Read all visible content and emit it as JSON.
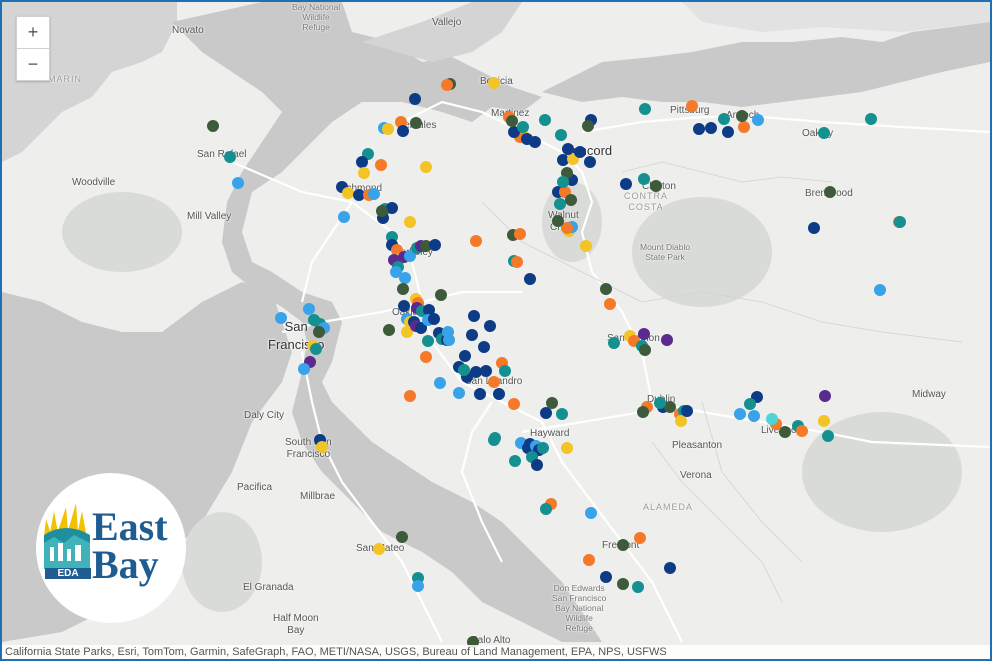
{
  "zoom": {
    "in_label": "+",
    "out_label": "−"
  },
  "attribution": "California State Parks, Esri, TomTom, Garmin, SafeGraph, FAO, METI/NASA, USGS, Bureau of Land Management, EPA, NPS, USFWS",
  "logo": {
    "line1": "East",
    "line2": "Bay",
    "badge": "EDA",
    "sun_color": "#f2c200",
    "brand_color": "#1f5d91"
  },
  "labels": {
    "novato": "Novato",
    "marin": "MARIN",
    "vallejo": "Vallejo",
    "refuge": "Bay National\nWildlife\nRefuge",
    "benicia": "Benicia",
    "martinez": "Martinez",
    "pittsburg": "Pittsburg",
    "antioch": "Antioch",
    "oakley": "Oakley",
    "hercules": "Hercules",
    "concord": "Concord",
    "san_rafael": "San Rafael",
    "woodville": "Woodville",
    "richmond": "Richmond",
    "clayton": "Clayton",
    "contra_costa": "CONTRA\nCOSTA",
    "brentwood": "Brentwood",
    "mill_valley": "Mill Valley",
    "walnut_creek": "Walnut\nCreek",
    "mount_diablo": "Mount Diablo\nState Park",
    "berkeley": "Berkeley",
    "oakland": "Oakland",
    "san_francisco": "San\nFrancisco",
    "san_ramon": "San Ramon",
    "san_leandro": "San Leandro",
    "dublin": "Dublin",
    "midway": "Midway",
    "daly_city": "Daly City",
    "hayward": "Hayward",
    "pleasanton": "Pleasanton",
    "livermore": "Livermore",
    "south_sf": "South San\nFrancisco",
    "verona": "Verona",
    "pacifica": "Pacifica",
    "millbrae": "Millbrae",
    "alameda": "ALAMEDA",
    "san_mateo": "San Mateo",
    "fremont": "Fremont",
    "el_granada": "El Granada",
    "half_moon_bay": "Half Moon\nBay",
    "don_edwards": "Don Edwards\nSan Francisco\nBay National\nWildlife\nRefuge",
    "palo_alto": "Palo Alto"
  },
  "marker_colors": {
    "navy": "#0d3b85",
    "teal": "#159090",
    "orange": "#f47a2a",
    "yellow": "#f2c426",
    "darkgreen": "#3d5a3a",
    "lightblue": "#38a3e8",
    "purple": "#5b2a8e",
    "aqua": "#4fd3d6"
  }
}
